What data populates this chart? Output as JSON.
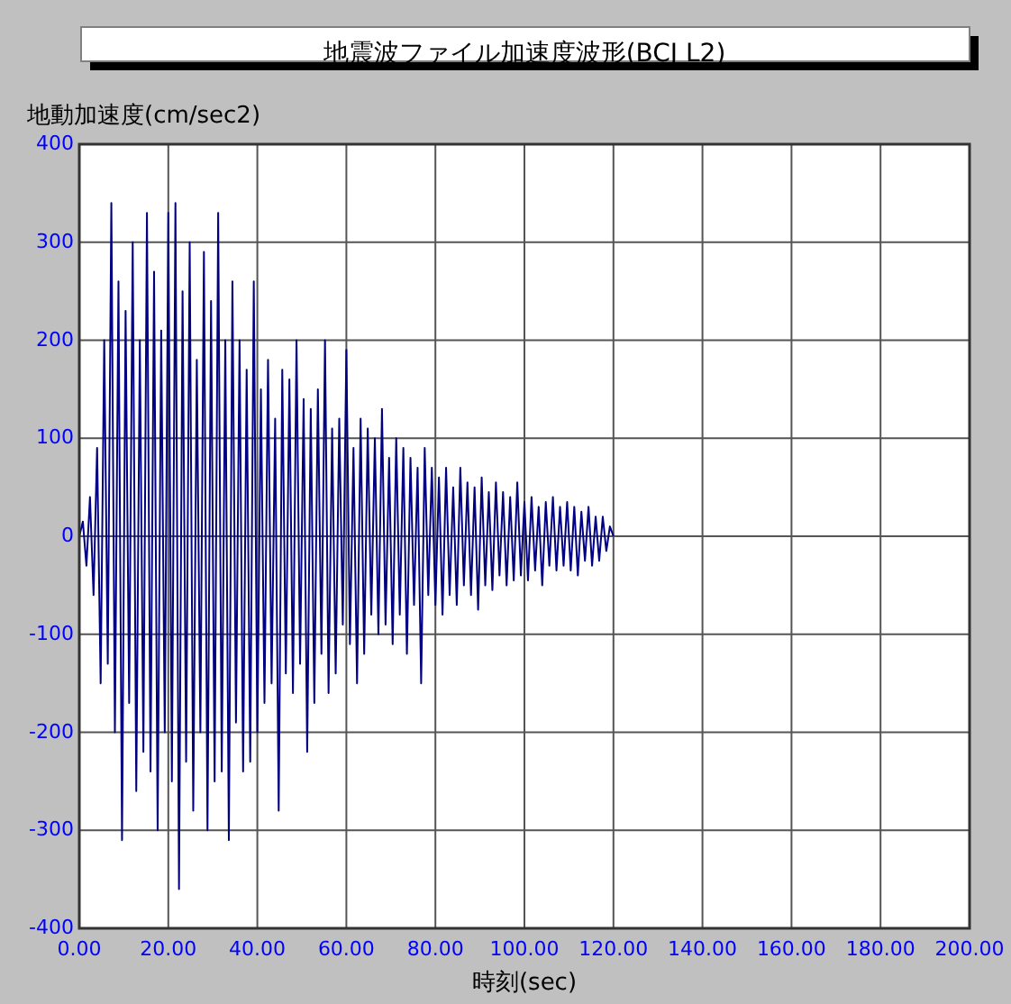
{
  "chart_data": {
    "type": "line",
    "title": "地震波ファイル加速度波形(BCJ L2)",
    "xlabel": "時刻(sec)",
    "ylabel": "地動加速度(cm/sec2)",
    "xlim": [
      0,
      200
    ],
    "ylim": [
      -400,
      400
    ],
    "xticks": [
      {
        "value": 0,
        "label": "0.00"
      },
      {
        "value": 20,
        "label": "20.00"
      },
      {
        "value": 40,
        "label": "40.00"
      },
      {
        "value": 60,
        "label": "60.00"
      },
      {
        "value": 80,
        "label": "80.00"
      },
      {
        "value": 100,
        "label": "100.00"
      },
      {
        "value": 120,
        "label": "120.00"
      },
      {
        "value": 140,
        "label": "140.00"
      },
      {
        "value": 160,
        "label": "160.00"
      },
      {
        "value": 180,
        "label": "180.00"
      },
      {
        "value": 200,
        "label": "200.00"
      }
    ],
    "yticks": [
      -400,
      -300,
      -200,
      -100,
      0,
      100,
      200,
      300,
      400
    ],
    "grid": true,
    "marker": "none",
    "line_style": "solid",
    "series": [
      {
        "color": "#000080",
        "x": [
          0,
          0.8,
          1.6,
          2.4,
          3.2,
          4,
          4.8,
          5.6,
          6.4,
          7.2,
          8,
          8.8,
          9.6,
          10.4,
          11.2,
          12,
          12.8,
          13.6,
          14.4,
          15.2,
          16,
          16.8,
          17.6,
          18.4,
          19.2,
          20,
          20.8,
          21.6,
          22.4,
          23.2,
          24,
          24.8,
          25.6,
          26.4,
          27.2,
          28,
          28.8,
          29.6,
          30.4,
          31.2,
          32,
          32.8,
          33.6,
          34.4,
          35.2,
          36,
          36.8,
          37.6,
          38.4,
          39.2,
          40,
          40.8,
          41.6,
          42.4,
          43.2,
          44,
          44.8,
          45.6,
          46.4,
          47.2,
          48,
          48.8,
          49.6,
          50.4,
          51.2,
          52,
          52.8,
          53.6,
          54.4,
          55.2,
          56,
          56.8,
          57.6,
          58.4,
          59.2,
          60,
          60.8,
          61.6,
          62.4,
          63.2,
          64,
          64.8,
          65.6,
          66.4,
          67.2,
          68,
          68.8,
          69.6,
          70.4,
          71.2,
          72,
          72.8,
          73.6,
          74.4,
          75.2,
          76,
          76.8,
          77.6,
          78.4,
          79.2,
          80,
          80.8,
          81.6,
          82.4,
          83.2,
          84,
          84.8,
          85.6,
          86.4,
          87.2,
          88,
          88.8,
          89.6,
          90.4,
          91.2,
          92,
          92.8,
          93.6,
          94.4,
          95.2,
          96,
          96.8,
          97.6,
          98.4,
          99.2,
          100,
          100.8,
          101.6,
          102.4,
          103.2,
          104,
          104.8,
          105.6,
          106.4,
          107.2,
          108,
          108.8,
          109.6,
          110.4,
          111.2,
          112,
          112.8,
          113.6,
          114.4,
          115.2,
          116,
          116.8,
          117.6,
          118.4,
          119.2,
          120
        ],
        "values": [
          0,
          15,
          -30,
          40,
          -60,
          90,
          -150,
          200,
          -130,
          340,
          -200,
          260,
          -310,
          230,
          -170,
          300,
          -260,
          200,
          -220,
          330,
          -240,
          270,
          -300,
          210,
          -200,
          330,
          -250,
          340,
          -360,
          250,
          -230,
          300,
          -280,
          180,
          -200,
          290,
          -300,
          240,
          -250,
          330,
          -240,
          200,
          -310,
          260,
          -190,
          200,
          -240,
          170,
          -230,
          260,
          -200,
          150,
          -170,
          180,
          -150,
          120,
          -280,
          170,
          -140,
          160,
          -160,
          200,
          -130,
          140,
          -220,
          130,
          -170,
          150,
          -120,
          200,
          -160,
          110,
          -140,
          120,
          -90,
          190,
          -110,
          90,
          -150,
          120,
          -120,
          110,
          -80,
          100,
          -100,
          130,
          -90,
          80,
          -110,
          100,
          -80,
          90,
          -120,
          80,
          -70,
          70,
          -150,
          90,
          -60,
          70,
          -70,
          60,
          -80,
          70,
          -60,
          50,
          -70,
          70,
          -50,
          55,
          -60,
          50,
          -75,
          60,
          -50,
          45,
          -55,
          55,
          -40,
          45,
          -50,
          40,
          -45,
          55,
          -40,
          35,
          -45,
          40,
          -35,
          30,
          -50,
          35,
          -30,
          40,
          -35,
          30,
          -30,
          35,
          -35,
          30,
          -40,
          25,
          -25,
          30,
          -30,
          20,
          -25,
          20,
          -15,
          10,
          0
        ]
      }
    ]
  }
}
